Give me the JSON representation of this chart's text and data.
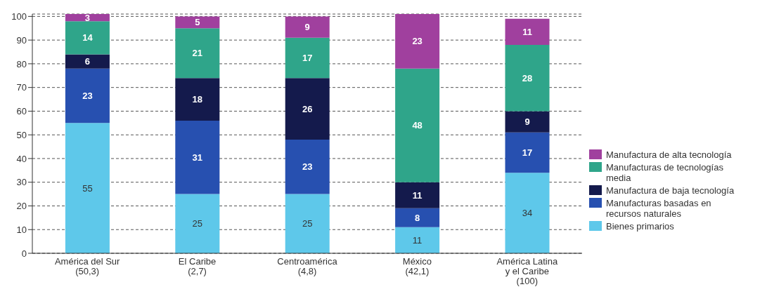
{
  "chart_data": {
    "type": "bar",
    "stacked": true,
    "categories": [
      "América del Sur\n(50,3)",
      "El Caribe\n(2,7)",
      "Centroamérica\n(4,8)",
      "México\n(42,1)",
      "América Latina\ny el Caribe\n(100)"
    ],
    "series": [
      {
        "name": "Bienes primarios",
        "color": "#5ec8ea",
        "values": [
          55,
          25,
          25,
          11,
          34
        ]
      },
      {
        "name": "Manufacturas basadas en recursos naturales",
        "color": "#2750b0",
        "values": [
          23,
          31,
          23,
          8,
          17
        ]
      },
      {
        "name": "Manufactura de baja tecnología",
        "color": "#141a4c",
        "values": [
          6,
          18,
          26,
          11,
          9
        ]
      },
      {
        "name": "Manufacturas de tecnologías media",
        "color": "#2fa58a",
        "values": [
          14,
          21,
          17,
          48,
          28
        ]
      },
      {
        "name": "Manufactura de alta tecnología",
        "color": "#a0409e",
        "values": [
          3,
          5,
          9,
          23,
          11
        ]
      }
    ],
    "ylim": [
      0,
      101
    ],
    "yticks": [
      0,
      10,
      20,
      30,
      40,
      50,
      60,
      70,
      80,
      90,
      100
    ],
    "grid": "y",
    "legend": "right",
    "data_labels": true
  }
}
